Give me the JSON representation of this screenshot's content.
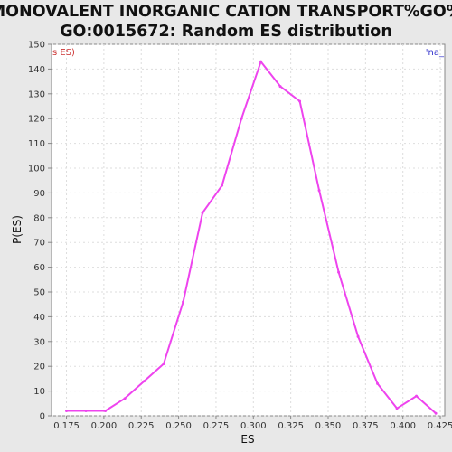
{
  "chart_data": {
    "type": "line",
    "title_line1": "MONOVALENT INORGANIC CATION TRANSPORT%GO%",
    "title_line2": "GO:0015672: Random ES distribution",
    "xlabel": "ES",
    "ylabel": "P(ES)",
    "xlim": [
      0.165,
      0.428
    ],
    "ylim": [
      0,
      150
    ],
    "x_ticks": [
      "0.175",
      "0.200",
      "0.225",
      "0.250",
      "0.275",
      "0.300",
      "0.325",
      "0.350",
      "0.375",
      "0.400",
      "0.425"
    ],
    "x_tick_values": [
      0.175,
      0.2,
      0.225,
      0.25,
      0.275,
      0.3,
      0.325,
      0.35,
      0.375,
      0.4,
      0.425
    ],
    "y_ticks": [
      "0",
      "10",
      "20",
      "30",
      "40",
      "50",
      "60",
      "70",
      "80",
      "90",
      "100",
      "110",
      "120",
      "130",
      "140",
      "150"
    ],
    "y_tick_values": [
      0,
      10,
      20,
      30,
      40,
      50,
      60,
      70,
      80,
      90,
      100,
      110,
      120,
      130,
      140,
      150
    ],
    "grid": true,
    "legend_left_text": "s ES)",
    "legend_right_text": "'na_",
    "series": [
      {
        "color": "#ee44ee",
        "x": [
          0.175,
          0.188,
          0.201,
          0.214,
          0.227,
          0.24,
          0.253,
          0.266,
          0.279,
          0.292,
          0.305,
          0.318,
          0.331,
          0.344,
          0.357,
          0.37,
          0.383,
          0.396,
          0.409,
          0.422
        ],
        "y": [
          2,
          2,
          2,
          7,
          14,
          21,
          46,
          82,
          93,
          120,
          143,
          133,
          127,
          91,
          58,
          32,
          13,
          3,
          8,
          1
        ]
      }
    ],
    "colors": {
      "background": "#e8e8e8",
      "plot_background": "#ffffff",
      "grid": "#dddddd",
      "axis": "#888888",
      "line": "#ee44ee",
      "legend_left": "#cc3333",
      "legend_right": "#3333cc"
    }
  }
}
